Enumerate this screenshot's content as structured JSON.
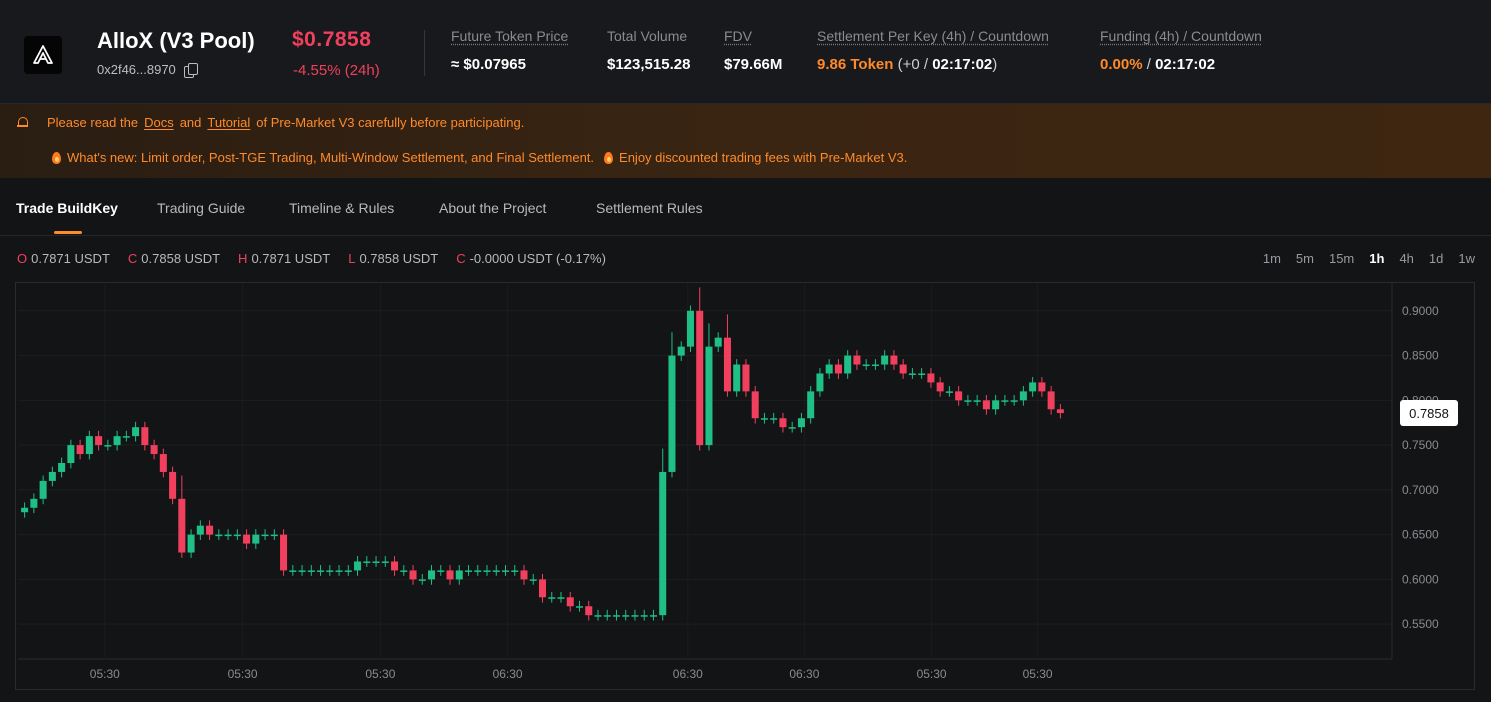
{
  "header": {
    "title": "AlloX (V3 Pool)",
    "address": "0x2f46...8970",
    "price": "$0.7858",
    "change": "-4.55% (24h)",
    "stats": {
      "future_label": "Future Token Price",
      "future_value": "≈ $0.07965",
      "volume_label": "Total Volume",
      "volume_value": "$123,515.28",
      "fdv_label": "FDV",
      "fdv_value": "$79.66M",
      "settlement_label": "Settlement Per Key (4h) / Countdown",
      "settlement_token": "9.86 Token",
      "settlement_delta": "(+0",
      "settlement_slash": "/",
      "settlement_countdown": "02:17:02",
      "settlement_close": ")",
      "funding_label": "Funding (4h) / Countdown",
      "funding_rate": "0.00%",
      "funding_slash": "/",
      "funding_countdown": "02:17:02"
    }
  },
  "notice": {
    "line1_pre": "Please read the",
    "docs_link": "Docs",
    "and": "and",
    "tutorial_link": "Tutorial",
    "line1_post": "of Pre-Market V3 carefully before participating.",
    "line2_a": "What's new: Limit order, Post-TGE Trading, Multi-Window Settlement, and Final Settlement.",
    "line2_b": "Enjoy discounted trading fees with Pre-Market V3."
  },
  "tabs": [
    "Trade BuildKey",
    "Trading Guide",
    "Timeline & Rules",
    "About the Project",
    "Settlement Rules"
  ],
  "ohlc": {
    "o_key": "O",
    "o_val": "0.7871 USDT",
    "c_key": "C",
    "c_val": "0.7858 USDT",
    "h_key": "H",
    "h_val": "0.7871 USDT",
    "l_key": "L",
    "l_val": "0.7858 USDT",
    "ch_key": "C",
    "ch_val": "-0.0000 USDT (-0.17%)"
  },
  "intervals": [
    "1m",
    "5m",
    "15m",
    "1h",
    "4h",
    "1d",
    "1w"
  ],
  "active_interval": "1h",
  "colors": {
    "up": "#1fbf86",
    "down": "#f0405e",
    "accent": "#ff8a2a"
  },
  "chart_data": {
    "type": "candlestick",
    "ylim": [
      0.52,
      0.94
    ],
    "y_ticks": [
      "0.9000",
      "0.8500",
      "0.8000",
      "0.7500",
      "0.7000",
      "0.6500",
      "0.6000",
      "0.5500"
    ],
    "x_ticks": [
      "05:30",
      "05:30",
      "05:30",
      "06:30",
      "06:30",
      "06:30",
      "05:30",
      "05:30"
    ],
    "last_price_label": "0.7858",
    "closes": [
      0.68,
      0.69,
      0.71,
      0.72,
      0.73,
      0.75,
      0.74,
      0.76,
      0.75,
      0.75,
      0.76,
      0.76,
      0.77,
      0.75,
      0.74,
      0.72,
      0.69,
      0.63,
      0.65,
      0.66,
      0.65,
      0.65,
      0.65,
      0.65,
      0.64,
      0.65,
      0.65,
      0.65,
      0.61,
      0.61,
      0.61,
      0.61,
      0.61,
      0.61,
      0.61,
      0.61,
      0.62,
      0.62,
      0.62,
      0.62,
      0.61,
      0.61,
      0.6,
      0.6,
      0.61,
      0.61,
      0.6,
      0.61,
      0.61,
      0.61,
      0.61,
      0.61,
      0.61,
      0.61,
      0.6,
      0.6,
      0.58,
      0.58,
      0.58,
      0.57,
      0.57,
      0.56,
      0.56,
      0.56,
      0.56,
      0.56,
      0.56,
      0.56,
      0.56,
      0.72,
      0.85,
      0.86,
      0.9,
      0.75,
      0.86,
      0.87,
      0.81,
      0.84,
      0.81,
      0.78,
      0.78,
      0.78,
      0.77,
      0.77,
      0.78,
      0.81,
      0.83,
      0.84,
      0.83,
      0.85,
      0.84,
      0.84,
      0.84,
      0.85,
      0.84,
      0.83,
      0.83,
      0.83,
      0.82,
      0.81,
      0.81,
      0.8,
      0.8,
      0.8,
      0.79,
      0.8,
      0.8,
      0.8,
      0.81,
      0.82,
      0.81,
      0.79,
      0.7858
    ]
  }
}
